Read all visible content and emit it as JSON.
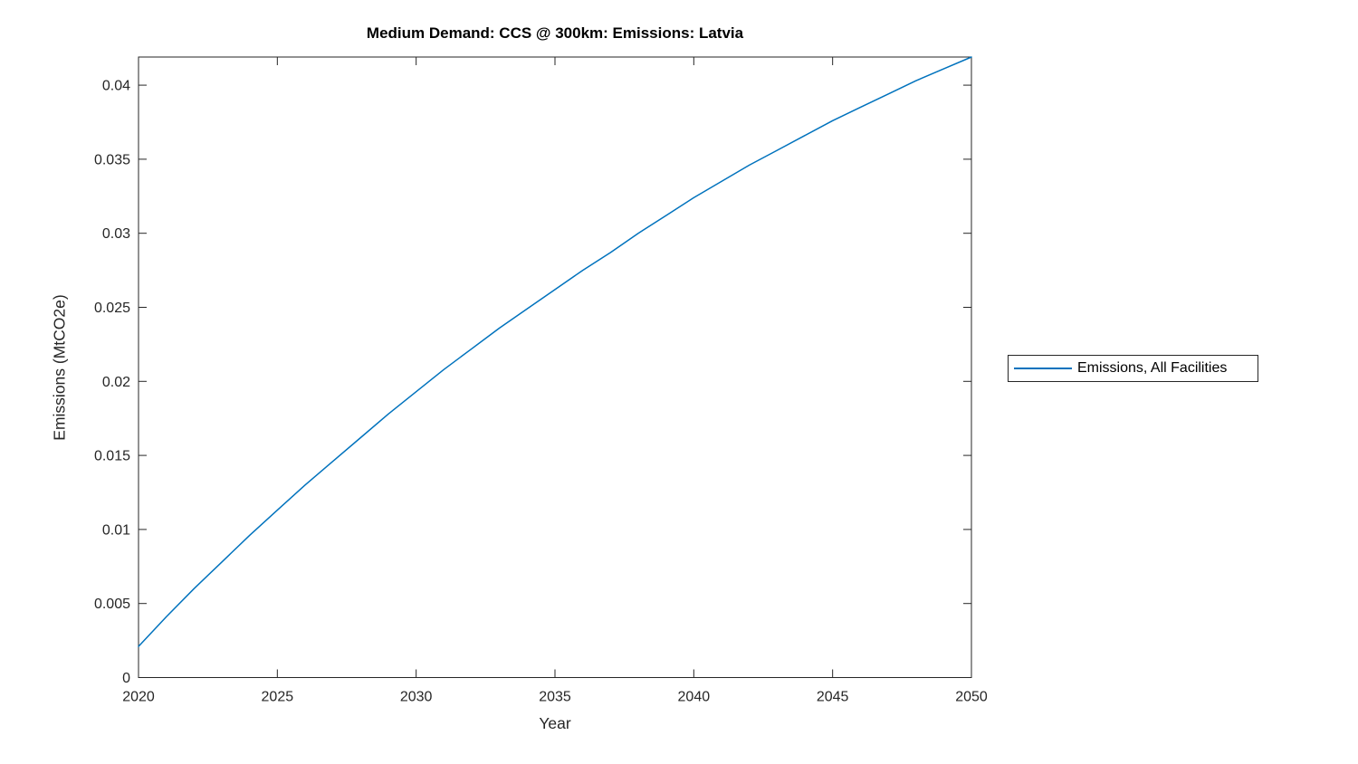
{
  "window": {
    "background": "#ffffff"
  },
  "colors": {
    "line": "#0072BD",
    "axis": "#262626",
    "tick_text": "#262626",
    "title_text": "#000000",
    "legend_border": "#262626"
  },
  "chart_data": {
    "type": "line",
    "title": "Medium Demand: CCS @ 300km: Emissions: Latvia",
    "xlabel": "Year",
    "ylabel": "Emissions (MtCO2e)",
    "xlim": [
      2020,
      2050
    ],
    "ylim": [
      0,
      0.0419
    ],
    "xticks": [
      2020,
      2025,
      2030,
      2035,
      2040,
      2045,
      2050
    ],
    "yticks": [
      0,
      0.005,
      0.01,
      0.015,
      0.02,
      0.025,
      0.03,
      0.035,
      0.04
    ],
    "grid": false,
    "box": true,
    "tick_direction": "in",
    "legend_position": "right-outside",
    "series": [
      {
        "name": "Emissions, All Facilities",
        "color": "#0072BD",
        "x": [
          2020,
          2021,
          2022,
          2023,
          2024,
          2025,
          2026,
          2027,
          2028,
          2029,
          2030,
          2031,
          2032,
          2033,
          2034,
          2035,
          2036,
          2037,
          2038,
          2039,
          2040,
          2041,
          2042,
          2043,
          2044,
          2045,
          2046,
          2047,
          2048,
          2049,
          2050
        ],
        "y": [
          0.0021,
          0.0041,
          0.006,
          0.0078,
          0.0096,
          0.0113,
          0.013,
          0.0146,
          0.0162,
          0.0178,
          0.0193,
          0.0208,
          0.0222,
          0.0236,
          0.0249,
          0.0262,
          0.0275,
          0.0287,
          0.03,
          0.0312,
          0.0324,
          0.0335,
          0.0346,
          0.0356,
          0.0366,
          0.0376,
          0.0385,
          0.0394,
          0.0403,
          0.0411,
          0.0419
        ]
      }
    ]
  }
}
